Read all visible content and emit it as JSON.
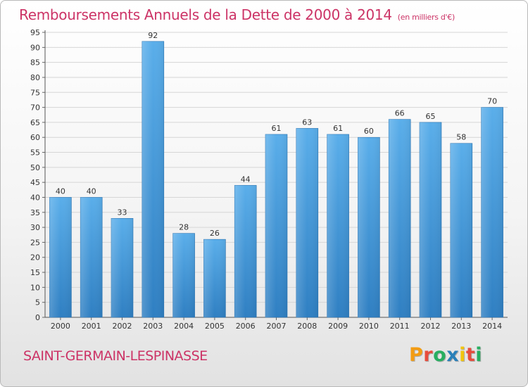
{
  "chart_data": {
    "type": "bar",
    "title": "Remboursements Annuels de la Dette de 2000 à 2014",
    "subtitle": "(en milliers d'€)",
    "categories": [
      "2000",
      "2001",
      "2002",
      "2003",
      "2004",
      "2005",
      "2006",
      "2007",
      "2008",
      "2009",
      "2010",
      "2011",
      "2012",
      "2013",
      "2014"
    ],
    "values": [
      40,
      40,
      33,
      92,
      28,
      26,
      44,
      61,
      63,
      61,
      60,
      66,
      65,
      58,
      70
    ],
    "ylim": [
      0,
      95
    ],
    "ytick_step": 5,
    "xlabel": "",
    "ylabel": "",
    "grid": true,
    "bar_color": "#4a9fe0"
  },
  "footer": {
    "town": "SAINT-GERMAIN-LESPINASSE",
    "logo_letters": [
      "P",
      "r",
      "o",
      "x",
      "i",
      "t",
      "i"
    ],
    "logo_colors": [
      "#f39c12",
      "#e74c3c",
      "#27ae60",
      "#2980b9",
      "#f1c40f",
      "#e74c3c",
      "#27ae60"
    ]
  }
}
